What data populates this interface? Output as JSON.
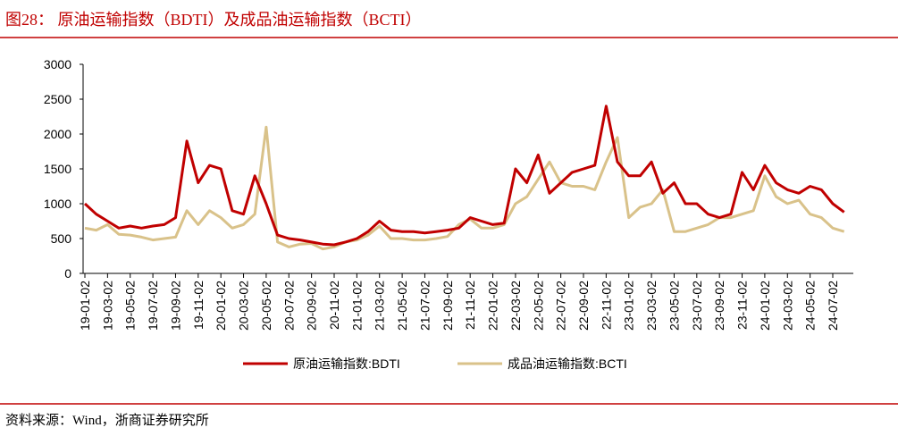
{
  "header": {
    "title": "图28：  原油运输指数（BDTI）及成品油运输指数（BCTI）"
  },
  "chart_data": {
    "type": "line",
    "categories": [
      "19-01-02",
      null,
      "19-03-02",
      null,
      "19-05-02",
      null,
      "19-07-02",
      null,
      "19-09-02",
      null,
      "19-11-02",
      null,
      "20-01-02",
      null,
      "20-03-02",
      null,
      "20-05-02",
      null,
      "20-07-02",
      null,
      "20-09-02",
      null,
      "20-11-02",
      null,
      "21-01-02",
      null,
      "21-03-02",
      null,
      "21-05-02",
      null,
      "21-07-02",
      null,
      "21-09-02",
      null,
      "21-11-02",
      null,
      "22-01-02",
      null,
      "22-03-02",
      null,
      "22-05-02",
      null,
      "22-07-02",
      null,
      "22-09-02",
      null,
      "22-11-02",
      null,
      "23-01-02",
      null,
      "23-03-02",
      null,
      "23-05-02",
      null,
      "23-07-02",
      null,
      "23-09-02",
      null,
      "23-11-02",
      null,
      "24-01-02",
      null,
      "24-03-02",
      null,
      "24-05-02",
      null,
      "24-07-02",
      null
    ],
    "series": [
      {
        "name": "原油运输指数:BDTI",
        "color": "#c00000",
        "values": [
          1000,
          850,
          750,
          650,
          680,
          650,
          680,
          700,
          800,
          1900,
          1300,
          1550,
          1500,
          900,
          850,
          1400,
          1000,
          550,
          500,
          480,
          450,
          420,
          410,
          450,
          500,
          600,
          750,
          620,
          600,
          600,
          580,
          600,
          620,
          650,
          800,
          750,
          700,
          720,
          1500,
          1300,
          1700,
          1150,
          1300,
          1450,
          1500,
          1550,
          2400,
          1600,
          1400,
          1400,
          1600,
          1150,
          1300,
          1000,
          1000,
          850,
          800,
          850,
          1450,
          1200,
          1550,
          1300,
          1200,
          1150,
          1250,
          1200,
          1000,
          880
        ]
      },
      {
        "name": "成品油运输指数:BCTI",
        "color": "#d9c28a",
        "values": [
          650,
          620,
          700,
          560,
          550,
          520,
          480,
          500,
          520,
          900,
          700,
          900,
          800,
          650,
          700,
          850,
          2100,
          450,
          380,
          420,
          430,
          350,
          380,
          450,
          480,
          550,
          680,
          500,
          500,
          480,
          480,
          500,
          530,
          700,
          780,
          650,
          650,
          700,
          1000,
          1100,
          1350,
          1600,
          1300,
          1250,
          1250,
          1200,
          1600,
          1950,
          800,
          950,
          1000,
          1200,
          600,
          600,
          650,
          700,
          800,
          800,
          850,
          900,
          1400,
          1100,
          1000,
          1050,
          850,
          800,
          650,
          600
        ]
      }
    ],
    "ylim": [
      0,
      3000
    ],
    "yticks": [
      0,
      500,
      1000,
      1500,
      2000,
      2500,
      3000
    ],
    "legend": "bottom"
  },
  "footer": {
    "source": "资料来源：Wind，浙商证券研究所"
  }
}
